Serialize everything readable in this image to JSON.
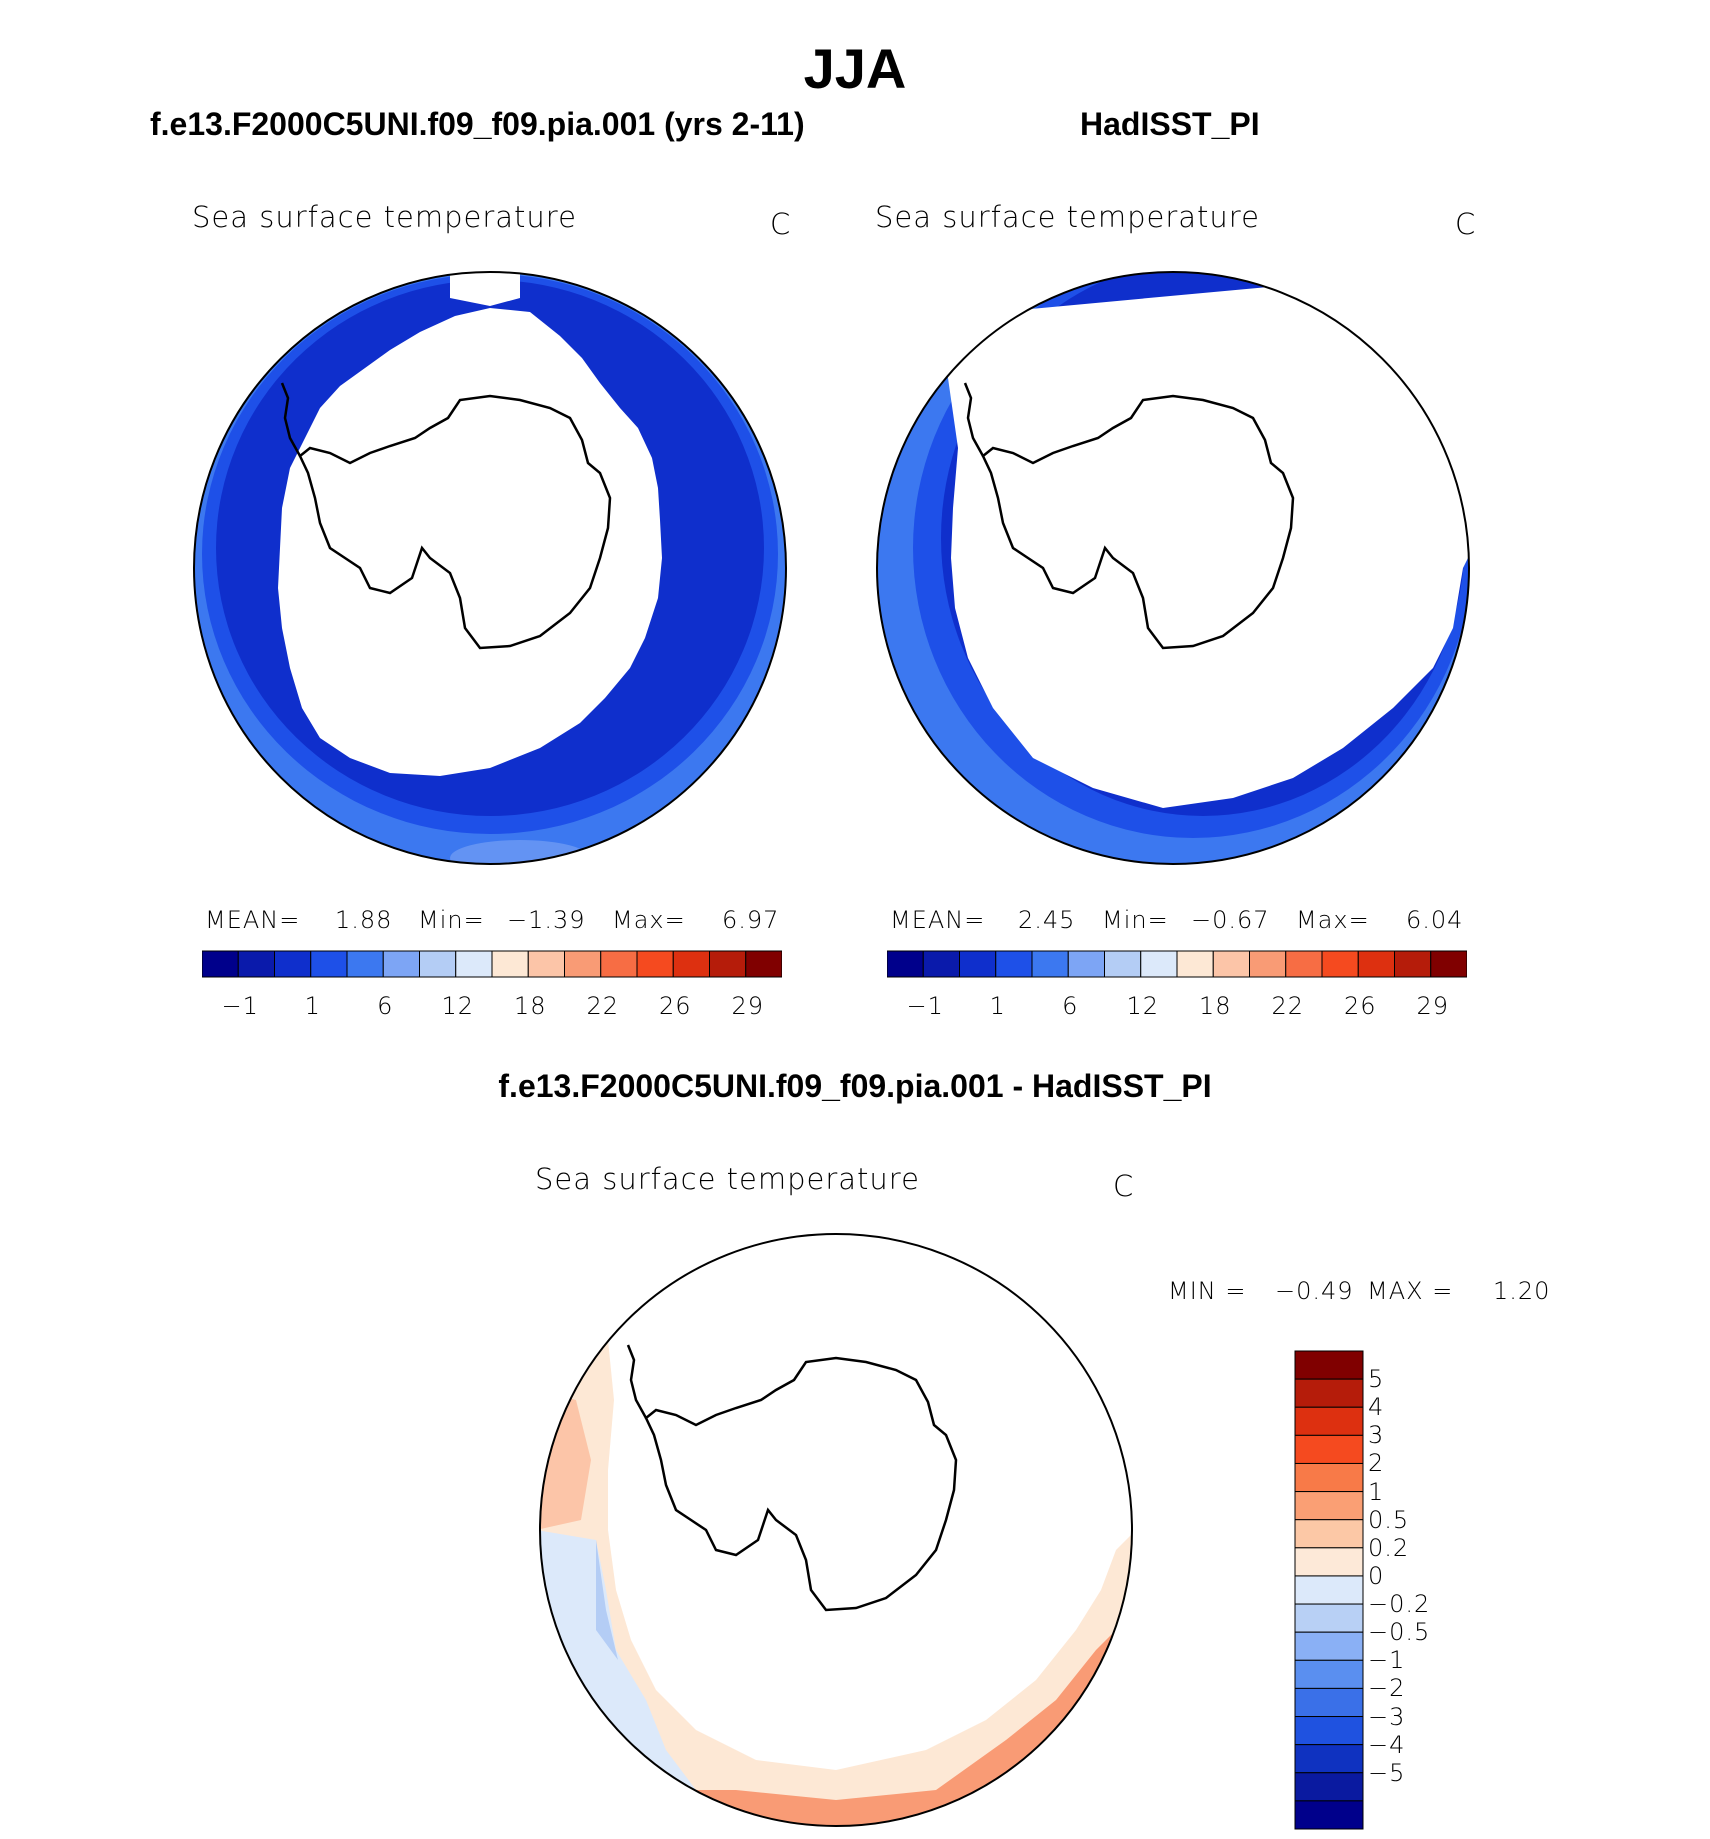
{
  "season": "JJA",
  "panels": {
    "left": {
      "title": "f.e13.F2000C5UNI.f09_f09.pia.001 (yrs 2-11)",
      "variable": "Sea surface temperature",
      "unit": "C",
      "stats": {
        "mean_label": "MEAN=",
        "mean": "1.88",
        "min_label": "Min=",
        "min": "−1.39",
        "max_label": "Max=",
        "max": "6.97"
      }
    },
    "right": {
      "title": "HadISST_PI",
      "variable": "Sea surface temperature",
      "unit": "C",
      "stats": {
        "mean_label": "MEAN=",
        "mean": "2.45",
        "min_label": "Min=",
        "min": "−0.67",
        "max_label": "Max=",
        "max": "6.04"
      }
    },
    "diff": {
      "title": "f.e13.F2000C5UNI.f09_f09.pia.001 - HadISST_PI",
      "variable": "Sea surface temperature",
      "unit": "C",
      "stats": {
        "min_label": "MIN =",
        "min": "−0.49",
        "max_label": "MAX =",
        "max": "1.20"
      }
    }
  },
  "sst_colorbar": {
    "colors": [
      "#00008b",
      "#0a1aab",
      "#0f2fcc",
      "#1e50e8",
      "#3c78f0",
      "#7da5f5",
      "#b4cdf5",
      "#dce9fa",
      "#fde8d5",
      "#fcc5a8",
      "#f99b75",
      "#f76d44",
      "#f54a1f",
      "#dd3010",
      "#b51c0a",
      "#800000"
    ],
    "tick_labels": [
      "−1",
      "1",
      "6",
      "12",
      "18",
      "22",
      "26",
      "29"
    ]
  },
  "diff_colorbar": {
    "colors": [
      "#800000",
      "#b51c0a",
      "#dd3010",
      "#f54a1f",
      "#f87a48",
      "#fa9f74",
      "#fcc8a6",
      "#fde9d8",
      "#dce9fa",
      "#b8d0f5",
      "#8ab0f5",
      "#5a8ff0",
      "#3a70e8",
      "#1f52e0",
      "#0f32c0",
      "#0a1aa0",
      "#00008b"
    ],
    "tick_labels": [
      "5",
      "4",
      "3",
      "2",
      "1",
      "0.5",
      "0.2",
      "0",
      "−0.2",
      "−0.5",
      "−1",
      "−2",
      "−3",
      "−4",
      "−5"
    ]
  },
  "colors": {
    "sst_outer": "#3c78f0",
    "sst_mid": "#1e50e8",
    "sst_inner": "#0f2fcc",
    "diff_warm": "#f99b75",
    "diff_light_warm": "#fcc5a8",
    "diff_cool": "#b4cdf5"
  }
}
